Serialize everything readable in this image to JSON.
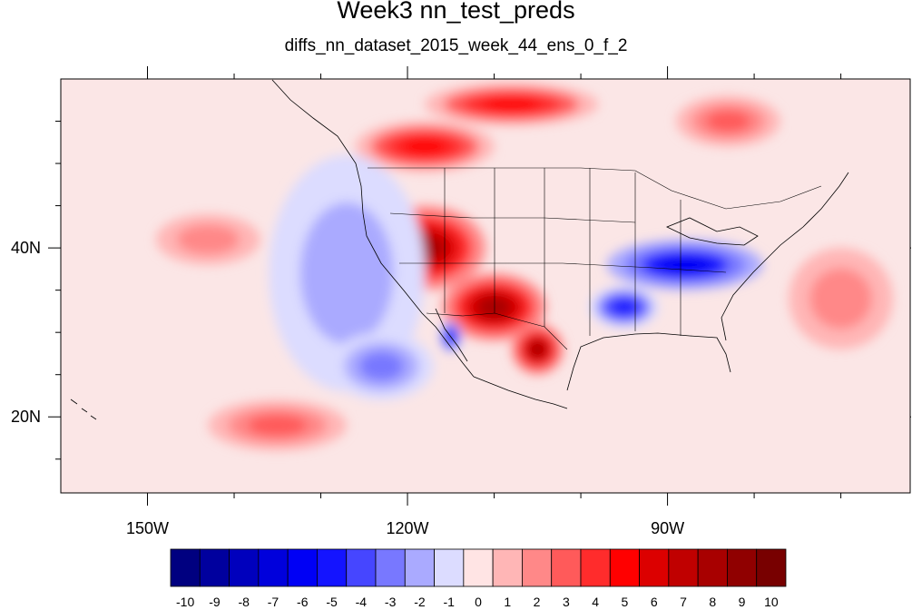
{
  "title": "Week3 nn_test_preds",
  "subtitle": "diffs_nn_dataset_2015_week_44_ens_0_f_2",
  "map": {
    "lon_range": [
      -160,
      -62
    ],
    "lat_range": [
      11,
      60
    ],
    "lon_ticks": [
      {
        "value": -150,
        "label": "150W"
      },
      {
        "value": -120,
        "label": "120W"
      },
      {
        "value": -90,
        "label": "90W"
      }
    ],
    "lat_ticks": [
      {
        "value": 40,
        "label": "40N"
      },
      {
        "value": 20,
        "label": "20N"
      }
    ],
    "minor_lon_ticks": [
      -140,
      -130,
      -110,
      -100,
      -80,
      -70
    ],
    "minor_lat_ticks": [
      15,
      25,
      30,
      35,
      45,
      50,
      55
    ]
  },
  "colorbar": {
    "labels": [
      "-10",
      "-9",
      "-8",
      "-7",
      "-6",
      "-5",
      "-4",
      "-3",
      "-2",
      "-1",
      "0",
      "1",
      "2",
      "3",
      "4",
      "5",
      "6",
      "7",
      "8",
      "9",
      "10"
    ],
    "colors": [
      "#000080",
      "#00009e",
      "#0000bd",
      "#0000dc",
      "#0000f5",
      "#1414ff",
      "#4646ff",
      "#7878ff",
      "#aaaaff",
      "#dcdcff",
      "#ffe4e4",
      "#ffb6b6",
      "#ff8888",
      "#ff5a5a",
      "#ff2c2c",
      "#ff0000",
      "#dc0000",
      "#c00000",
      "#a80000",
      "#900000",
      "#780000"
    ]
  },
  "anomaly_regions": [
    {
      "lon": -118,
      "lat": 40,
      "rx": 7,
      "ry": 5,
      "value": 8
    },
    {
      "lon": -110,
      "lat": 33,
      "rx": 6,
      "ry": 4,
      "value": 8
    },
    {
      "lon": -105,
      "lat": 28,
      "rx": 3,
      "ry": 3,
      "value": 8
    },
    {
      "lon": -118,
      "lat": 52,
      "rx": 8,
      "ry": 3,
      "value": 5
    },
    {
      "lon": -108,
      "lat": 57,
      "rx": 10,
      "ry": 2.5,
      "value": 5
    },
    {
      "lon": -83,
      "lat": 55,
      "rx": 6,
      "ry": 3,
      "value": 3
    },
    {
      "lon": -88,
      "lat": 38,
      "rx": 9,
      "ry": 3,
      "value": -6
    },
    {
      "lon": -95,
      "lat": 33,
      "rx": 4,
      "ry": 2.5,
      "value": -5
    },
    {
      "lon": -115,
      "lat": 29.5,
      "rx": 1.2,
      "ry": 1.8,
      "value": -6
    },
    {
      "lon": -127,
      "lat": 37,
      "rx": 9,
      "ry": 14,
      "value": -2
    },
    {
      "lon": -123,
      "lat": 26,
      "rx": 6,
      "ry": 4,
      "value": -3
    },
    {
      "lon": -143,
      "lat": 41,
      "rx": 6,
      "ry": 3,
      "value": 2
    },
    {
      "lon": -135,
      "lat": 19,
      "rx": 8,
      "ry": 3,
      "value": 3
    },
    {
      "lon": -70,
      "lat": 34,
      "rx": 6,
      "ry": 6,
      "value": 2
    }
  ]
}
